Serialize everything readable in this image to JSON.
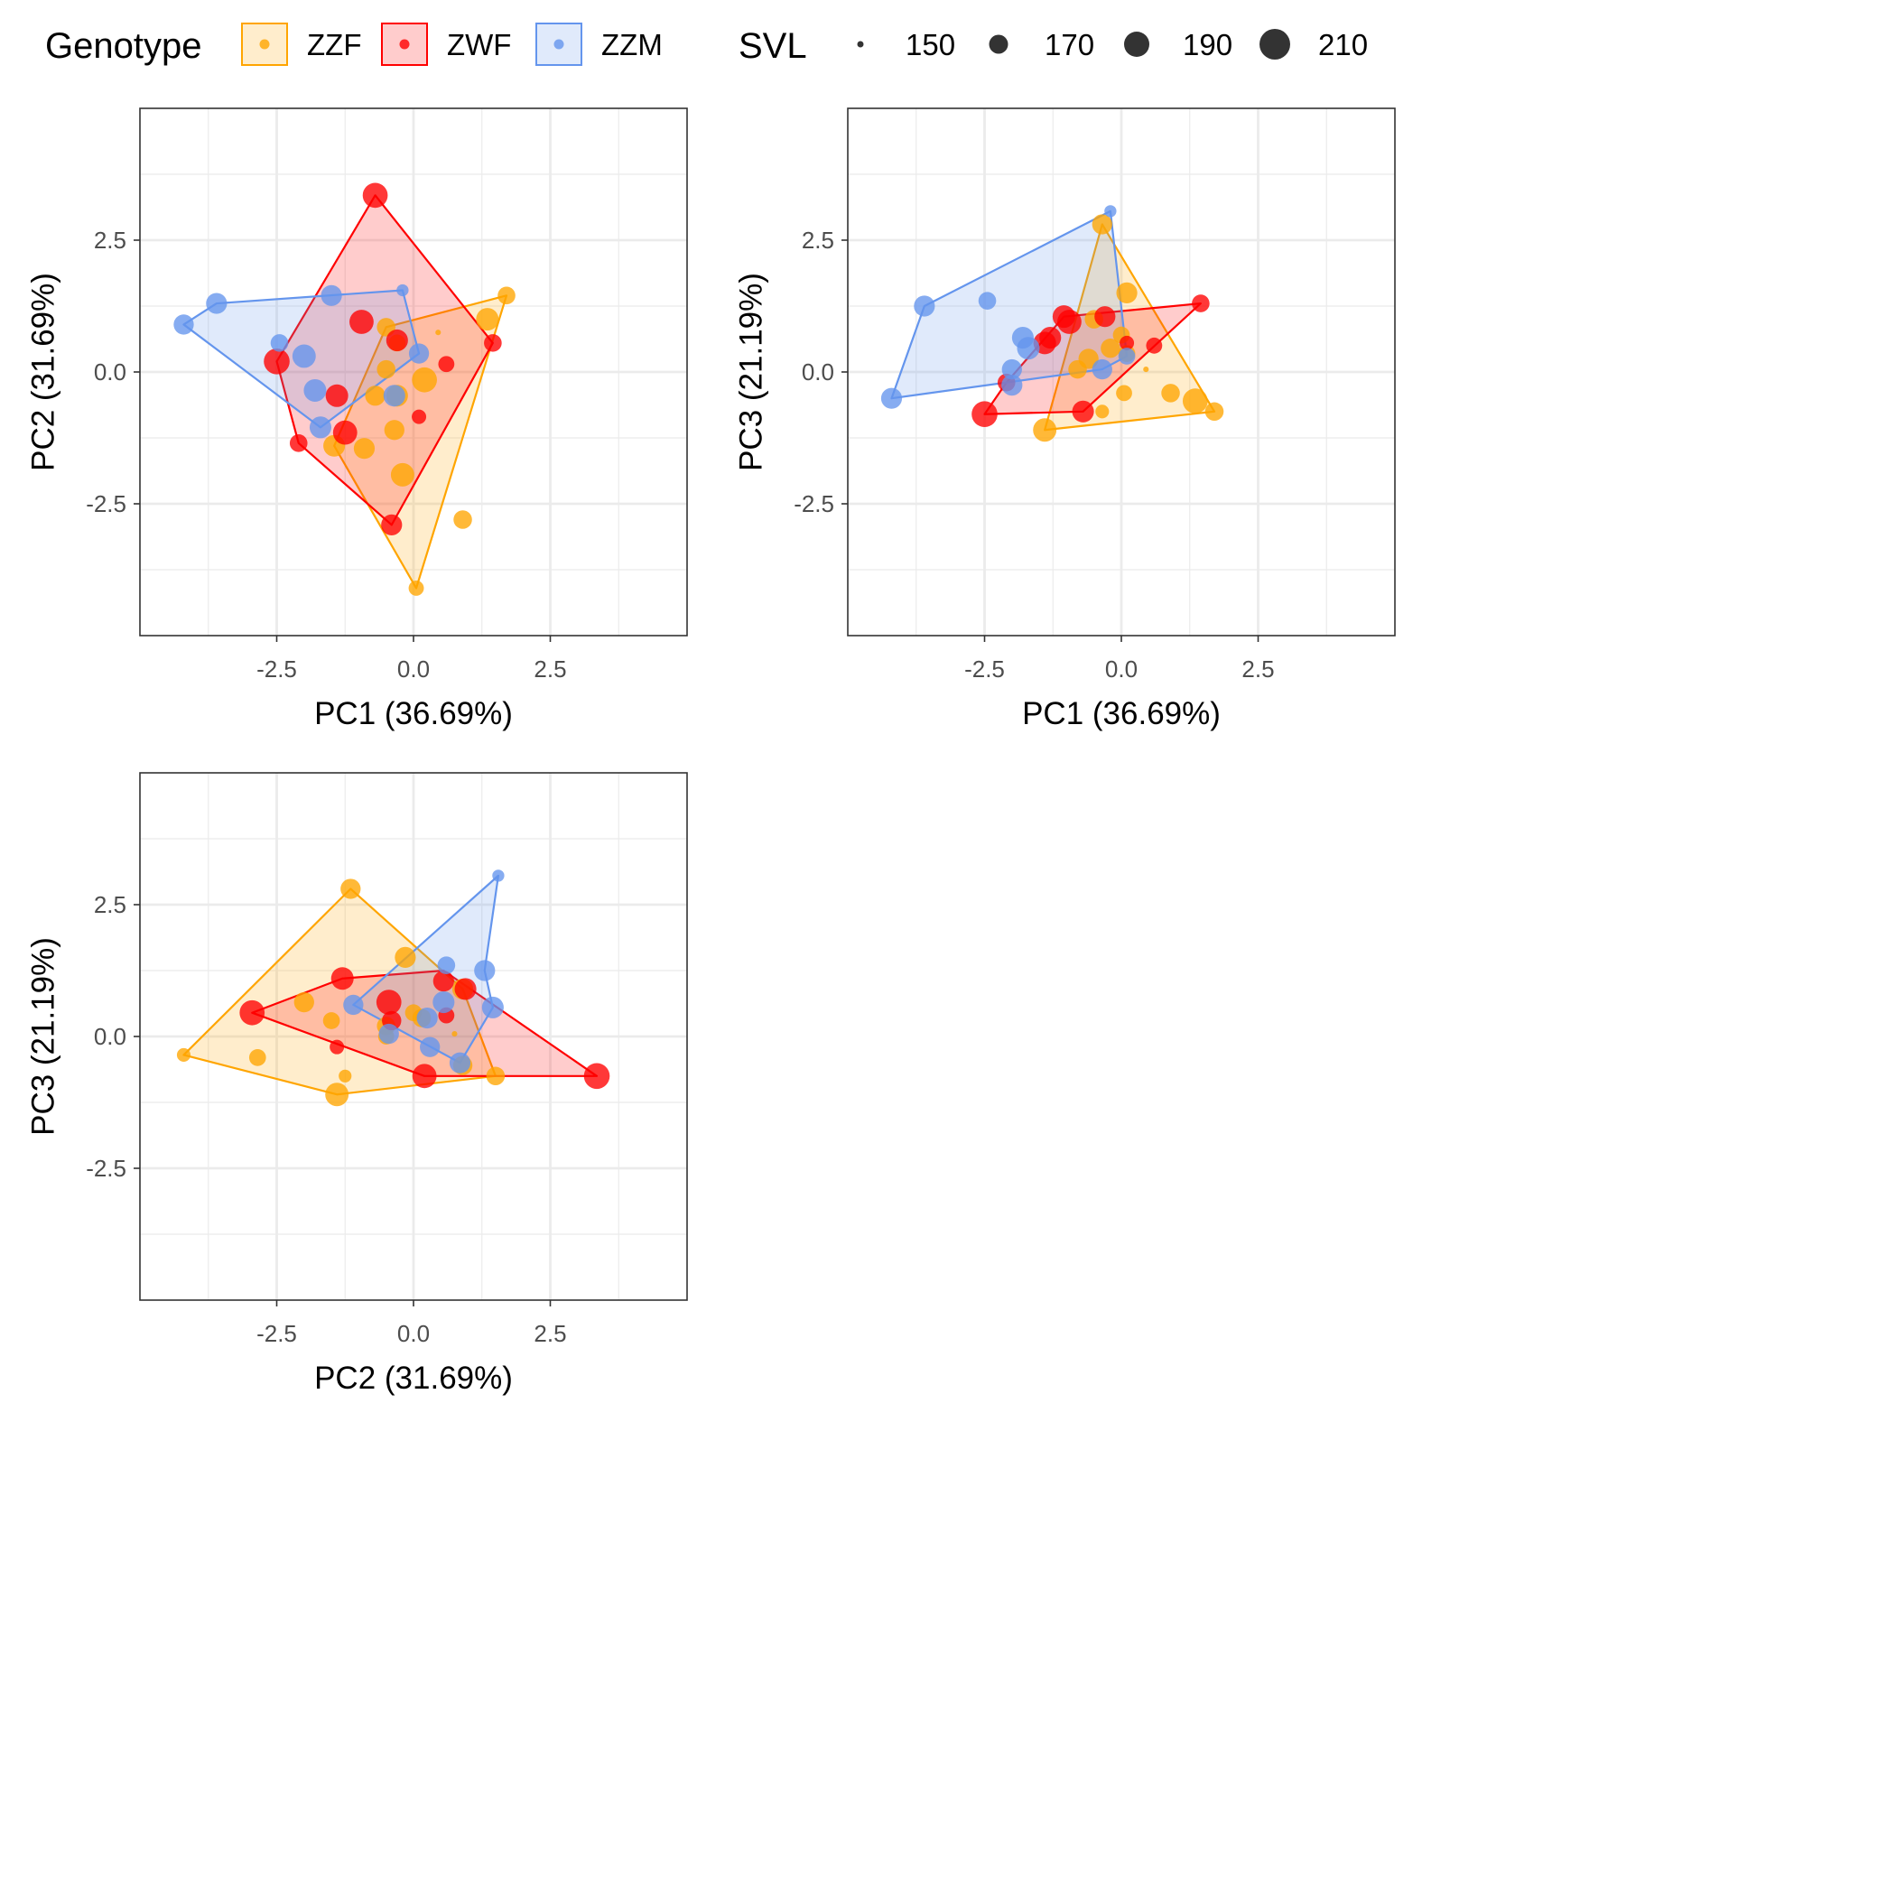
{
  "legend": {
    "genotype_title": "Genotype",
    "svl_title": "SVL",
    "genotypes": [
      {
        "key": "ZZF",
        "label": "ZZF",
        "color": "#FFA500"
      },
      {
        "key": "ZWF",
        "label": "ZWF",
        "color": "#FF0000"
      },
      {
        "key": "ZZM",
        "label": "ZZM",
        "color": "#6495ED"
      }
    ],
    "svl_sizes": [
      "150",
      "170",
      "190",
      "210"
    ]
  },
  "chart_data": [
    {
      "type": "scatter",
      "id": "pc1_pc2",
      "xlabel": "PC1 (36.69%)",
      "ylabel": "PC2 (31.69%)",
      "xlim": [
        -5,
        5
      ],
      "ylim": [
        -5,
        5
      ],
      "xticks": [
        "-2.5",
        "0.0",
        "2.5"
      ],
      "yticks": [
        "2.5",
        "0.0",
        "-2.5"
      ],
      "grid": true,
      "series": [
        {
          "name": "ZZF",
          "points": [
            [
              1.7,
              1.45,
              178
            ],
            [
              1.35,
              1.0,
              190
            ],
            [
              0.45,
              0.75,
              148
            ],
            [
              -0.5,
              0.85,
              180
            ],
            [
              -0.3,
              0.55,
              176
            ],
            [
              -0.5,
              0.05,
              180
            ],
            [
              0.2,
              -0.15,
              196
            ],
            [
              -0.3,
              -0.45,
              188
            ],
            [
              -0.7,
              -0.45,
              184
            ],
            [
              -0.35,
              -1.1,
              184
            ],
            [
              -0.9,
              -1.45,
              186
            ],
            [
              -1.45,
              -1.4,
              188
            ],
            [
              -0.2,
              -1.95,
              192
            ],
            [
              0.9,
              -2.8,
              180
            ],
            [
              0.05,
              -4.1,
              172
            ]
          ]
        },
        {
          "name": "ZWF",
          "points": [
            [
              -0.7,
              3.35,
              196
            ],
            [
              -0.95,
              0.95,
              194
            ],
            [
              -2.5,
              0.2,
              198
            ],
            [
              -0.3,
              0.6,
              188
            ],
            [
              0.6,
              0.15,
              174
            ],
            [
              1.45,
              0.55,
              178
            ],
            [
              -1.4,
              -0.45,
              190
            ],
            [
              -1.25,
              -1.15,
              194
            ],
            [
              0.1,
              -0.85,
              170
            ],
            [
              -2.1,
              -1.35,
              178
            ],
            [
              -0.4,
              -2.9,
              186
            ]
          ]
        },
        {
          "name": "ZZM",
          "points": [
            [
              -4.2,
              0.9,
              184
            ],
            [
              -3.6,
              1.3,
              186
            ],
            [
              -1.5,
              1.45,
              186
            ],
            [
              -0.2,
              1.55,
              164
            ],
            [
              -2.45,
              0.55,
              178
            ],
            [
              -2.0,
              0.3,
              192
            ],
            [
              -1.8,
              -0.35,
              190
            ],
            [
              -0.35,
              -0.45,
              188
            ],
            [
              0.1,
              0.35,
              184
            ],
            [
              -1.7,
              -1.05,
              188
            ]
          ]
        }
      ],
      "hulls": {
        "ZZF": [
          [
            1.7,
            1.45
          ],
          [
            0.05,
            -4.1
          ],
          [
            -1.45,
            -1.4
          ],
          [
            -0.5,
            0.85
          ]
        ],
        "ZWF": [
          [
            -0.7,
            3.35
          ],
          [
            1.45,
            0.55
          ],
          [
            -0.4,
            -2.9
          ],
          [
            -2.1,
            -1.35
          ],
          [
            -2.5,
            0.2
          ]
        ],
        "ZZM": [
          [
            -4.2,
            0.9
          ],
          [
            -3.6,
            1.3
          ],
          [
            -0.2,
            1.55
          ],
          [
            0.1,
            0.35
          ],
          [
            -1.7,
            -1.05
          ]
        ]
      }
    },
    {
      "type": "scatter",
      "id": "pc1_pc3",
      "xlabel": "PC1 (36.69%)",
      "ylabel": "PC3 (21.19%)",
      "xlim": [
        -5,
        5
      ],
      "ylim": [
        -5,
        5
      ],
      "xticks": [
        "-2.5",
        "0.0",
        "2.5"
      ],
      "yticks": [
        "2.5",
        "0.0",
        "-2.5"
      ],
      "grid": true,
      "series": [
        {
          "name": "ZZF",
          "points": [
            [
              -0.35,
              2.8,
              184
            ],
            [
              0.1,
              1.5,
              186
            ],
            [
              -0.5,
              1.0,
              180
            ],
            [
              0.0,
              0.7,
              176
            ],
            [
              -0.2,
              0.45,
              182
            ],
            [
              -0.6,
              0.25,
              184
            ],
            [
              0.1,
              0.35,
              176
            ],
            [
              -0.8,
              0.05,
              180
            ],
            [
              0.45,
              0.05,
              148
            ],
            [
              0.05,
              -0.4,
              174
            ],
            [
              0.9,
              -0.4,
              180
            ],
            [
              1.35,
              -0.55,
              196
            ],
            [
              1.7,
              -0.75,
              180
            ],
            [
              -0.35,
              -0.75,
              168
            ],
            [
              -1.4,
              -1.1,
              192
            ]
          ]
        },
        {
          "name": "ZWF",
          "points": [
            [
              1.45,
              1.3,
              178
            ],
            [
              -1.05,
              1.05,
              190
            ],
            [
              -0.95,
              0.95,
              194
            ],
            [
              -0.3,
              1.05,
              186
            ],
            [
              0.6,
              0.5,
              174
            ],
            [
              -1.3,
              0.65,
              188
            ],
            [
              -1.4,
              0.55,
              190
            ],
            [
              0.1,
              0.55,
              170
            ],
            [
              -2.5,
              -0.8,
              198
            ],
            [
              -0.7,
              -0.75,
              188
            ],
            [
              -2.1,
              -0.2,
              178
            ]
          ]
        },
        {
          "name": "ZZM",
          "points": [
            [
              -0.2,
              3.05,
              164
            ],
            [
              -3.6,
              1.25,
              186
            ],
            [
              -2.45,
              1.35,
              178
            ],
            [
              -1.8,
              0.65,
              188
            ],
            [
              -1.7,
              0.45,
              190
            ],
            [
              -2.0,
              0.05,
              184
            ],
            [
              -2.0,
              -0.25,
              186
            ],
            [
              -0.35,
              0.05,
              184
            ],
            [
              0.1,
              0.3,
              176
            ],
            [
              -4.2,
              -0.5,
              186
            ]
          ]
        }
      ],
      "hulls": {
        "ZZF": [
          [
            -0.35,
            2.8
          ],
          [
            1.7,
            -0.75
          ],
          [
            -1.4,
            -1.1
          ]
        ],
        "ZWF": [
          [
            1.45,
            1.3
          ],
          [
            -0.7,
            -0.75
          ],
          [
            -2.5,
            -0.8
          ],
          [
            -2.1,
            -0.2
          ],
          [
            -1.05,
            1.05
          ]
        ],
        "ZZM": [
          [
            -0.2,
            3.05
          ],
          [
            0.1,
            0.3
          ],
          [
            -0.35,
            0.05
          ],
          [
            -4.2,
            -0.5
          ],
          [
            -3.6,
            1.25
          ]
        ]
      }
    },
    {
      "type": "scatter",
      "id": "pc2_pc3",
      "xlabel": "PC2 (31.69%)",
      "ylabel": "PC3 (21.19%)",
      "xlim": [
        -5,
        5
      ],
      "ylim": [
        -5,
        5
      ],
      "xticks": [
        "-2.5",
        "0.0",
        "2.5"
      ],
      "yticks": [
        "2.5",
        "0.0",
        "-2.5"
      ],
      "grid": true,
      "series": [
        {
          "name": "ZZF",
          "points": [
            [
              -1.15,
              2.8,
              184
            ],
            [
              -0.15,
              1.5,
              186
            ],
            [
              -2.0,
              0.65,
              184
            ],
            [
              -1.5,
              0.3,
              176
            ],
            [
              -0.5,
              0.2,
              180
            ],
            [
              0.0,
              0.45,
              176
            ],
            [
              0.15,
              0.35,
              180
            ],
            [
              0.75,
              0.05,
              148
            ],
            [
              -0.5,
              0.0,
              174
            ],
            [
              0.9,
              0.9,
              186
            ],
            [
              -2.85,
              -0.4,
              176
            ],
            [
              -4.2,
              -0.35,
              168
            ],
            [
              -1.25,
              -0.75,
              166
            ],
            [
              -1.4,
              -1.1,
              192
            ],
            [
              0.9,
              -0.55,
              182
            ],
            [
              1.5,
              -0.75,
              180
            ]
          ]
        },
        {
          "name": "ZWF",
          "points": [
            [
              3.35,
              -0.75,
              198
            ],
            [
              -1.3,
              1.1,
              190
            ],
            [
              -0.45,
              0.65,
              196
            ],
            [
              0.55,
              1.05,
              186
            ],
            [
              0.95,
              0.9,
              188
            ],
            [
              -2.95,
              0.45,
              196
            ],
            [
              0.2,
              -0.75,
              194
            ],
            [
              -1.4,
              -0.2,
              170
            ],
            [
              0.6,
              0.4,
              174
            ],
            [
              -0.4,
              0.3,
              182
            ]
          ]
        },
        {
          "name": "ZZM",
          "points": [
            [
              1.55,
              3.05,
              164
            ],
            [
              1.3,
              1.25,
              186
            ],
            [
              1.45,
              0.55,
              188
            ],
            [
              0.6,
              1.35,
              178
            ],
            [
              -1.1,
              0.6,
              184
            ],
            [
              0.55,
              0.65,
              188
            ],
            [
              0.25,
              0.35,
              186
            ],
            [
              -0.45,
              0.05,
              184
            ],
            [
              0.3,
              -0.2,
              184
            ],
            [
              0.85,
              -0.5,
              186
            ]
          ]
        }
      ],
      "hulls": {
        "ZZF": [
          [
            -1.15,
            2.8
          ],
          [
            0.9,
            0.9
          ],
          [
            1.5,
            -0.75
          ],
          [
            -1.4,
            -1.1
          ],
          [
            -4.2,
            -0.35
          ]
        ],
        "ZWF": [
          [
            -1.3,
            1.1
          ],
          [
            0.55,
            1.25
          ],
          [
            3.35,
            -0.75
          ],
          [
            0.2,
            -0.75
          ],
          [
            -2.95,
            0.45
          ]
        ],
        "ZZM": [
          [
            1.55,
            3.05
          ],
          [
            1.3,
            1.25
          ],
          [
            1.45,
            0.55
          ],
          [
            0.85,
            -0.5
          ],
          [
            -1.1,
            0.6
          ]
        ]
      }
    }
  ]
}
